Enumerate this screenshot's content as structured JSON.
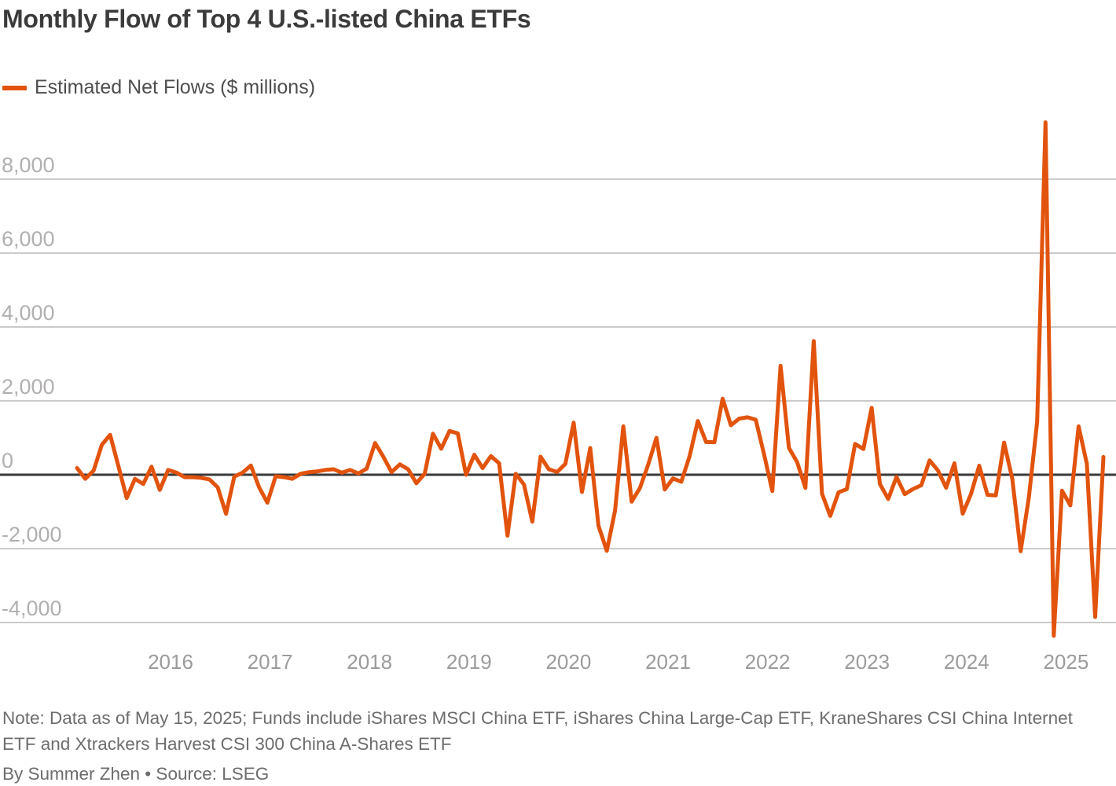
{
  "header": {
    "title": "Monthly Flow of Top 4 U.S.-listed China ETFs"
  },
  "legend": {
    "label": "Estimated Net Flows ($ millions)",
    "color": "#e2530d"
  },
  "footer": {
    "note": "Note: Data as of May 15, 2025; Funds include iShares MSCI China ETF, iShares China Large-Cap ETF, KraneShares CSI China Internet ETF and Xtrackers Harvest CSI 300 China A-Shares ETF",
    "byline": "By Summer Zhen • Source: LSEG"
  },
  "chart_data": {
    "type": "line",
    "title": "Monthly Flow of Top 4 U.S.-listed China ETFs",
    "series_name": "Estimated Net Flows ($ millions)",
    "unit": "$ millions",
    "line_color": "#e2530d",
    "grid": "horizontal",
    "legend_position": "top-left",
    "ylim": [
      -4600,
      9900
    ],
    "y_ticks": [
      8000,
      6000,
      4000,
      2000,
      0,
      -2000,
      -4000
    ],
    "y_tick_labels": [
      "8,000",
      "6,000",
      "4,000",
      "2,000",
      "0",
      "-2,000",
      "-4,000"
    ],
    "x_tick_labels": [
      "2016",
      "2017",
      "2018",
      "2019",
      "2020",
      "2021",
      "2022",
      "2023",
      "2024",
      "2025"
    ],
    "x": [
      "2015-01",
      "2015-02",
      "2015-03",
      "2015-04",
      "2015-05",
      "2015-06",
      "2015-07",
      "2015-08",
      "2015-09",
      "2015-10",
      "2015-11",
      "2015-12",
      "2016-01",
      "2016-02",
      "2016-03",
      "2016-04",
      "2016-05",
      "2016-06",
      "2016-07",
      "2016-08",
      "2016-09",
      "2016-10",
      "2016-11",
      "2016-12",
      "2017-01",
      "2017-02",
      "2017-03",
      "2017-04",
      "2017-05",
      "2017-06",
      "2017-07",
      "2017-08",
      "2017-09",
      "2017-10",
      "2017-11",
      "2017-12",
      "2018-01",
      "2018-02",
      "2018-03",
      "2018-04",
      "2018-05",
      "2018-06",
      "2018-07",
      "2018-08",
      "2018-09",
      "2018-10",
      "2018-11",
      "2018-12",
      "2019-01",
      "2019-02",
      "2019-03",
      "2019-04",
      "2019-05",
      "2019-06",
      "2019-07",
      "2019-08",
      "2019-09",
      "2019-10",
      "2019-11",
      "2019-12",
      "2020-01",
      "2020-02",
      "2020-03",
      "2020-04",
      "2020-05",
      "2020-06",
      "2020-07",
      "2020-08",
      "2020-09",
      "2020-10",
      "2020-11",
      "2020-12",
      "2021-01",
      "2021-02",
      "2021-03",
      "2021-04",
      "2021-05",
      "2021-06",
      "2021-07",
      "2021-08",
      "2021-09",
      "2021-10",
      "2021-11",
      "2021-12",
      "2022-01",
      "2022-02",
      "2022-03",
      "2022-04",
      "2022-05",
      "2022-06",
      "2022-07",
      "2022-08",
      "2022-09",
      "2022-10",
      "2022-11",
      "2022-12",
      "2023-01",
      "2023-02",
      "2023-03",
      "2023-04",
      "2023-05",
      "2023-06",
      "2023-07",
      "2023-08",
      "2023-09",
      "2023-10",
      "2023-11",
      "2023-12",
      "2024-01",
      "2024-02",
      "2024-03",
      "2024-04",
      "2024-05",
      "2024-06",
      "2024-07",
      "2024-08",
      "2024-09",
      "2024-10",
      "2024-11",
      "2024-12",
      "2025-01",
      "2025-02",
      "2025-03",
      "2025-04",
      "2025-05"
    ],
    "values": [
      180,
      -110,
      110,
      810,
      1080,
      230,
      -630,
      -110,
      -250,
      220,
      -410,
      130,
      60,
      -65,
      -65,
      -85,
      -125,
      -340,
      -1055,
      -50,
      55,
      250,
      -340,
      -755,
      -40,
      -65,
      -110,
      25,
      70,
      90,
      130,
      150,
      55,
      130,
      35,
      165,
      860,
      490,
      70,
      280,
      150,
      -230,
      30,
      1110,
      705,
      1185,
      1120,
      0,
      540,
      180,
      505,
      310,
      -1650,
      25,
      -265,
      -1270,
      490,
      150,
      75,
      295,
      1410,
      -465,
      725,
      -1380,
      -2060,
      -970,
      1310,
      -730,
      -360,
      270,
      1000,
      -400,
      -100,
      -190,
      500,
      1455,
      885,
      880,
      2060,
      1340,
      1520,
      1555,
      1490,
      550,
      -440,
      2950,
      730,
      340,
      -355,
      3620,
      -510,
      -1115,
      -475,
      -390,
      835,
      695,
      1810,
      -250,
      -655,
      -60,
      -525,
      -385,
      -285,
      390,
      115,
      -350,
      310,
      -1055,
      -520,
      245,
      -545,
      -560,
      870,
      -120,
      -2070,
      -600,
      1440,
      9540,
      -4360,
      -430,
      -830,
      1310,
      300,
      -3850,
      480
    ]
  },
  "style": {
    "grid_color": "#cccaca",
    "zero_line_color": "#3a3a3a",
    "y_label_color": "#b2afaf",
    "x_label_color": "#9d9a9a"
  }
}
